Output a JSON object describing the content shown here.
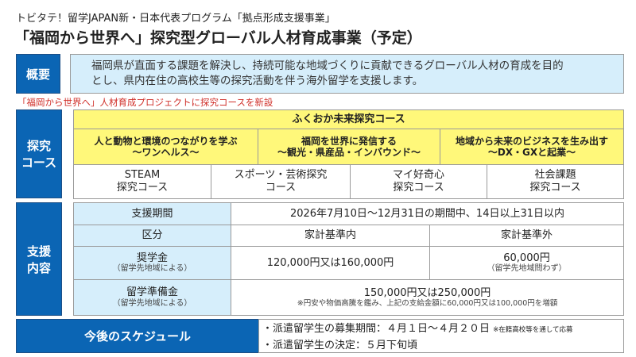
{
  "header": {
    "subtitle": "トビタテ！留学JAPAN新・日本代表プログラム「拠点形成支援事業」",
    "title": "「福岡から世界へ」探究型グローバル人材育成事業（予定）"
  },
  "overview": {
    "label": "概要",
    "lines": [
      "福岡県が直面する課題を解決し、持続可能な地域づくりに貢献できるグローバル人材の育成を目的",
      "とし、県内在住の高校生等の探究活動を伴う海外留学を支援します。"
    ]
  },
  "notice": "「福岡から世界へ」人材育成プロジェクトに探究コースを新設",
  "courses": {
    "label": "探究コース",
    "label_lines": [
      "探究",
      "コース"
    ],
    "main_title": "ふくおか未来探究コース",
    "themes": [
      {
        "l1": "人と動物と環境のつながりを学ぶ",
        "l2": "～ワンヘルス～"
      },
      {
        "l1": "福岡を世界に発信する",
        "l2": "～観光・県産品・インバウンド～"
      },
      {
        "l1": "地域から未来のビジネスを生み出す",
        "l2": "～DX・GXと起業～"
      }
    ],
    "other": [
      {
        "l1": "STEAM",
        "l2": "探究コース"
      },
      {
        "l1": "スポーツ・芸術探究",
        "l2": "コース"
      },
      {
        "l1": "マイ好奇心",
        "l2": "探究コース"
      },
      {
        "l1": "社会課題",
        "l2": "探究コース"
      }
    ]
  },
  "support": {
    "label_lines": [
      "支援",
      "内容"
    ],
    "period_label": "支援期間",
    "period_value": "2026年7月10日～12月31日の期間中、14日以上31日以内",
    "category_label": "区分",
    "within": "家計基準内",
    "outside": "家計基準外",
    "scholarship_label": "奨学金",
    "scholarship_note": "（留学先地域による）",
    "scholarship_within": "120,000円又は160,000円",
    "scholarship_outside": "60,000円",
    "scholarship_outside_note": "（留学先地域問わず）",
    "prep_label": "留学準備金",
    "prep_note": "（留学先地域による）",
    "prep_value": "150,000円又は250,000円",
    "prep_extra": "※円安や物価高騰を鑑み、上記の支給金額に60,000円又は100,000円を増額"
  },
  "schedule": {
    "label": "今後のスケジュール",
    "line1": "・派遣留学生の募集期間：４月１日～４月２０日",
    "line1_note": "※在籍高校等を通して応募",
    "line2": "・派遣留学生の決定：５月下旬頃"
  }
}
